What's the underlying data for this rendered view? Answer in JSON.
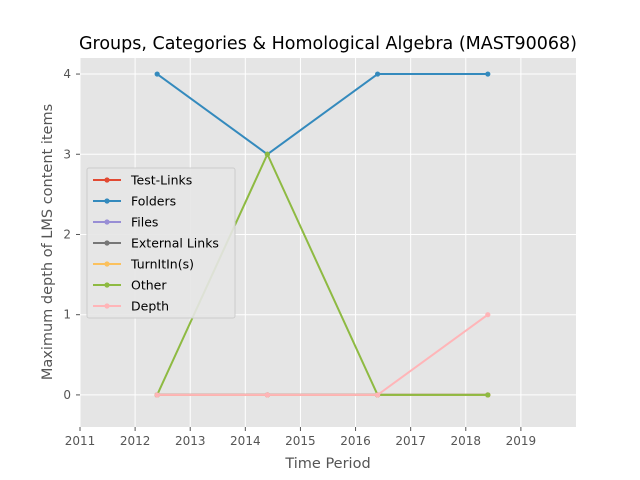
{
  "chart_data": {
    "type": "line",
    "title": "Groups, Categories & Homological Algebra (MAST90068)",
    "xlabel": "Time Period",
    "ylabel": "Maximum depth of LMS content items",
    "xlim": [
      2011,
      2020
    ],
    "ylim": [
      -0.4,
      4.2
    ],
    "xticks": [
      "2011",
      "2012",
      "2013",
      "2014",
      "2015",
      "2016",
      "2017",
      "2018",
      "2019"
    ],
    "yticks": [
      "0",
      "1",
      "2",
      "3",
      "4"
    ],
    "grid": true,
    "legend_position": "center-left",
    "x": [
      2012.4,
      2014.4,
      2016.4,
      2018.4
    ],
    "series": [
      {
        "name": "Test-Links",
        "color": "#E24A33",
        "values": [
          0,
          0,
          0,
          0
        ]
      },
      {
        "name": "Folders",
        "color": "#348ABD",
        "values": [
          4,
          3,
          4,
          4
        ]
      },
      {
        "name": "Files",
        "color": "#988ED5",
        "values": [
          0,
          0,
          0,
          0
        ]
      },
      {
        "name": "External Links",
        "color": "#777777",
        "values": [
          0,
          0,
          0,
          0
        ]
      },
      {
        "name": "TurnItIn(s)",
        "color": "#FBC15E",
        "values": [
          0,
          0,
          0,
          0
        ]
      },
      {
        "name": "Other",
        "color": "#8EBA42",
        "values": [
          0,
          3,
          0,
          0
        ]
      },
      {
        "name": "Depth",
        "color": "#FFB5B8",
        "values": [
          0,
          0,
          0,
          1
        ]
      }
    ]
  }
}
